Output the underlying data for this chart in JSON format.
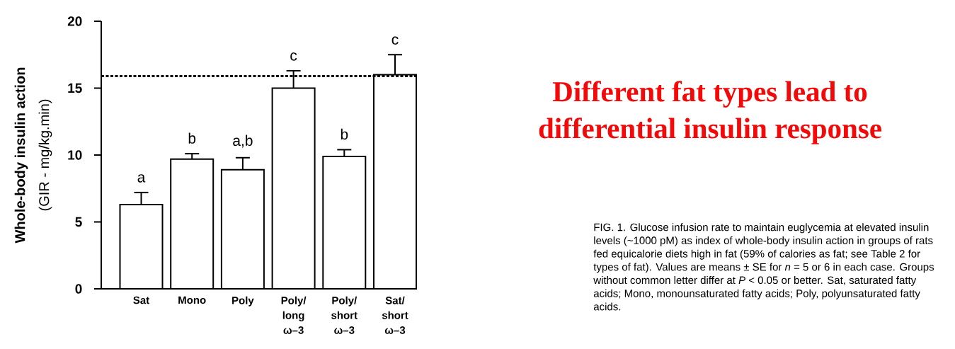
{
  "chart_data": {
    "type": "bar",
    "title": "Different fat types lead to differential insulin response",
    "ylabel": "**Whole-body insulin action** (GIR - mg/kg.min)",
    "categories": [
      "Sat",
      "Mono",
      "Poly",
      "Poly/ long ω–3",
      "Poly/ short ω–3",
      "Sat/ short ω–3"
    ],
    "values": [
      6.3,
      9.7,
      8.9,
      15.0,
      9.9,
      16.0
    ],
    "errors": [
      [
        6.3,
        7.2
      ],
      [
        9.7,
        10.1
      ],
      [
        8.9,
        9.8
      ],
      [
        15.0,
        16.3
      ],
      [
        9.9,
        10.4
      ],
      [
        16.0,
        17.5
      ]
    ],
    "color": "#ffffff",
    "ylim": [
      0,
      20
    ],
    "yticks": [
      0,
      5,
      10,
      15,
      20
    ],
    "ref_lines": [
      {
        "axis": "y",
        "value": 15.9,
        "line_style": "dashed",
        "color": "#000000"
      }
    ],
    "annotations": [
      {
        "text": "a",
        "x": "Sat",
        "y": 7.2
      },
      {
        "text": "b",
        "x": "Mono",
        "y": 10.1
      },
      {
        "text": "a,b",
        "x": "Poly",
        "y": 9.8
      },
      {
        "text": "c",
        "x": "Poly/ long ω–3",
        "y": 16.3
      },
      {
        "text": "b",
        "x": "Poly/ short ω–3",
        "y": 10.4
      },
      {
        "text": "c",
        "x": "Sat/ short ω–3",
        "y": 17.5
      },
      "FIG. 1. Glucose infusion rate to maintain euglycemia at elevated insulin levels (~1000 pM) as index of whole-body insulin action in groups of rats fed equicalorie diets high in fat (59% of calories as fat; see Table 2 for types of fat). Values are means ± SE for *n* = 5 or 6 in each case. Groups without common letter differ at *P* < 0.05 or better. Sat, saturated fatty acids; Mono, monounsaturated fatty acids; Poly, polyunsaturated fatty acids."
    ]
  }
}
